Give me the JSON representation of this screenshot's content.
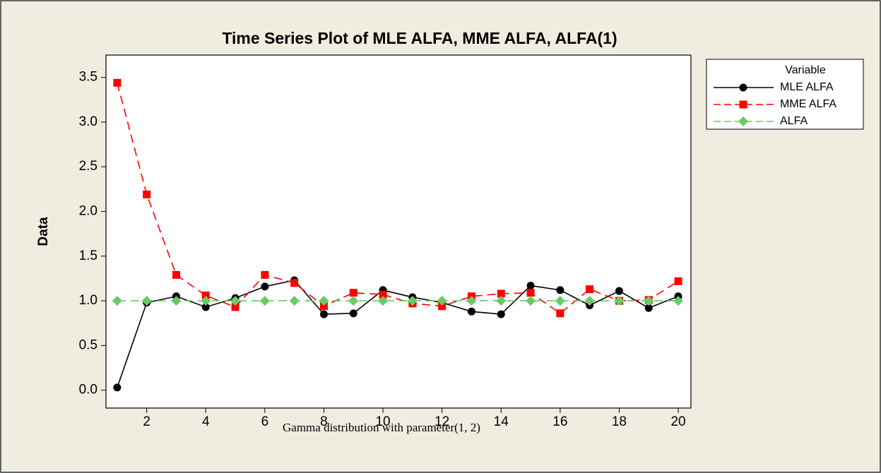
{
  "chart_data": {
    "type": "line",
    "title": "Time Series Plot of MLE ALFA, MME ALFA, ALFA(1)",
    "x_label": "Gamma distribution with parameter(1, 2)",
    "y_label": "Data",
    "legend_title": "Variable",
    "legend": "right",
    "x": [
      1,
      2,
      3,
      4,
      5,
      6,
      7,
      8,
      9,
      10,
      11,
      12,
      13,
      14,
      15,
      16,
      17,
      18,
      19,
      20
    ],
    "xlim": [
      0.62,
      20.43
    ],
    "xticks": [
      2,
      4,
      6,
      8,
      10,
      12,
      14,
      16,
      18,
      20
    ],
    "ylim": [
      -0.2,
      3.75
    ],
    "yticks": [
      {
        "value": 0,
        "label": "0.0"
      },
      {
        "value": 0.5,
        "label": "0.5"
      },
      {
        "value": 1,
        "label": "1.0"
      },
      {
        "value": 1.5,
        "label": "1.5"
      },
      {
        "value": 2,
        "label": "2.0"
      },
      {
        "value": 2.5,
        "label": "2.5"
      },
      {
        "value": 3,
        "label": "3.0"
      },
      {
        "value": 3.5,
        "label": "3.5"
      }
    ],
    "series": [
      {
        "name": "MLE ALFA",
        "color": "#000000",
        "line_style": "solid",
        "marker": "circle",
        "values": [
          0.03,
          0.98,
          1.05,
          0.93,
          1.03,
          1.16,
          1.23,
          0.85,
          0.86,
          1.12,
          1.04,
          0.98,
          0.88,
          0.85,
          1.17,
          1.12,
          0.95,
          1.11,
          0.92,
          1.05
        ]
      },
      {
        "name": "MME ALFA",
        "color": "#ff0000",
        "line_style": "dashed",
        "marker": "square",
        "values": [
          3.44,
          2.19,
          1.29,
          1.06,
          0.93,
          1.29,
          1.2,
          0.94,
          1.09,
          1.07,
          0.97,
          0.94,
          1.05,
          1.08,
          1.09,
          0.86,
          1.13,
          1.0,
          1.01,
          1.22
        ]
      },
      {
        "name": "ALFA",
        "color": "#66cc66",
        "line_style": "dashed",
        "marker": "diamond",
        "values": [
          1,
          1,
          1,
          1,
          1,
          1,
          1,
          1,
          1,
          1,
          1,
          1,
          1,
          1,
          1,
          1,
          1,
          1,
          1,
          1
        ]
      }
    ]
  }
}
